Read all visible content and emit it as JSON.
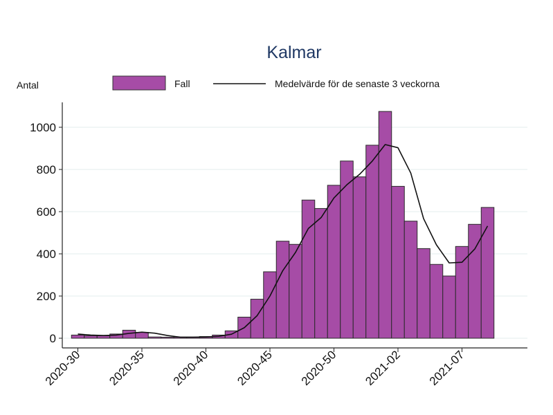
{
  "chart_data": {
    "type": "bar",
    "title": "Kalmar",
    "ylabel": "Antal",
    "xlabel": "",
    "ylim": [
      0,
      1000
    ],
    "yticks": [
      0,
      200,
      400,
      600,
      800,
      1000
    ],
    "xtick_labels": [
      "2020-30",
      "2020-35",
      "2020-40",
      "2020-45",
      "2020-50",
      "2021-02",
      "2021-07"
    ],
    "grid": true,
    "legend_position": "top",
    "categories": [
      "2020-30",
      "2020-31",
      "2020-32",
      "2020-33",
      "2020-34",
      "2020-35",
      "2020-36",
      "2020-37",
      "2020-38",
      "2020-39",
      "2020-40",
      "2020-41",
      "2020-42",
      "2020-43",
      "2020-44",
      "2020-45",
      "2020-46",
      "2020-47",
      "2020-48",
      "2020-49",
      "2020-50",
      "2020-51",
      "2020-52",
      "2020-53",
      "2021-01",
      "2021-02",
      "2021-03",
      "2021-04",
      "2021-05",
      "2021-06",
      "2021-07",
      "2021-08",
      "2021-09"
    ],
    "series": [
      {
        "name": "Fall",
        "kind": "bar",
        "color": "#a64ca6",
        "values": [
          15,
          12,
          12,
          20,
          38,
          28,
          6,
          5,
          5,
          5,
          8,
          15,
          35,
          100,
          185,
          315,
          460,
          445,
          655,
          615,
          725,
          840,
          765,
          915,
          1075,
          720,
          555,
          425,
          350,
          295,
          435,
          540,
          620
        ]
      },
      {
        "name": "Medelvärde för de senaste 3 veckorna",
        "kind": "line",
        "color": "#111111",
        "values": [
          20,
          15,
          13,
          15,
          23,
          29,
          24,
          13,
          5,
          5,
          6,
          9,
          19,
          50,
          107,
          200,
          320,
          407,
          520,
          572,
          665,
          727,
          777,
          840,
          918,
          903,
          783,
          567,
          443,
          357,
          360,
          423,
          532
        ]
      }
    ]
  }
}
